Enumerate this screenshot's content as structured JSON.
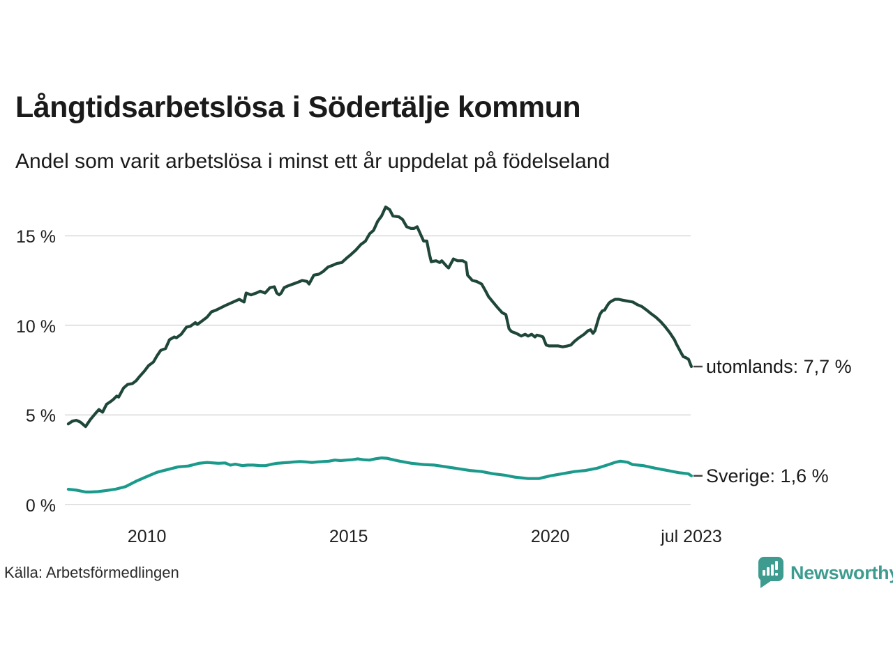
{
  "chart_data": {
    "type": "line",
    "title": "Långtidsarbetslösa i Södertälje kommun",
    "subtitle": "Andel som varit arbetslösa i minst ett år uppdelat på födelseland",
    "unit": "%",
    "grid": "horizontal",
    "legend": "end-of-line-labels",
    "x_axis": {
      "range": [
        2008.0,
        2023.5
      ],
      "ticks": [
        2010,
        2015,
        2020,
        2023.5
      ],
      "tick_labels": [
        "2010",
        "2015",
        "2020",
        "jul 2023"
      ]
    },
    "y_axis": {
      "range": [
        0,
        17.2
      ],
      "ticks": [
        0,
        5,
        10,
        15
      ],
      "tick_labels": [
        "0 %",
        "5 %",
        "10 %",
        "15 %"
      ]
    },
    "series": [
      {
        "name": "utomlands",
        "label": "utomlands: 7,7 %",
        "last_value": 7.7,
        "color": "#1f4739",
        "points": [
          [
            2008.05,
            4.5
          ],
          [
            2008.15,
            4.65
          ],
          [
            2008.25,
            4.7
          ],
          [
            2008.35,
            4.6
          ],
          [
            2008.48,
            4.35
          ],
          [
            2008.6,
            4.75
          ],
          [
            2008.73,
            5.1
          ],
          [
            2008.81,
            5.3
          ],
          [
            2008.9,
            5.15
          ],
          [
            2009.0,
            5.6
          ],
          [
            2009.07,
            5.7
          ],
          [
            2009.16,
            5.85
          ],
          [
            2009.25,
            6.05
          ],
          [
            2009.3,
            6.0
          ],
          [
            2009.42,
            6.5
          ],
          [
            2009.52,
            6.7
          ],
          [
            2009.64,
            6.75
          ],
          [
            2009.73,
            6.9
          ],
          [
            2009.82,
            7.15
          ],
          [
            2009.94,
            7.45
          ],
          [
            2010.04,
            7.75
          ],
          [
            2010.16,
            7.95
          ],
          [
            2010.25,
            8.3
          ],
          [
            2010.34,
            8.6
          ],
          [
            2010.46,
            8.7
          ],
          [
            2010.56,
            9.2
          ],
          [
            2010.68,
            9.35
          ],
          [
            2010.73,
            9.3
          ],
          [
            2010.85,
            9.5
          ],
          [
            2010.98,
            9.9
          ],
          [
            2011.08,
            9.95
          ],
          [
            2011.2,
            10.15
          ],
          [
            2011.25,
            10.05
          ],
          [
            2011.37,
            10.25
          ],
          [
            2011.49,
            10.45
          ],
          [
            2011.6,
            10.75
          ],
          [
            2011.72,
            10.85
          ],
          [
            2011.94,
            11.1
          ],
          [
            2012.19,
            11.35
          ],
          [
            2012.29,
            11.45
          ],
          [
            2012.41,
            11.3
          ],
          [
            2012.46,
            11.8
          ],
          [
            2012.58,
            11.7
          ],
          [
            2012.71,
            11.8
          ],
          [
            2012.81,
            11.9
          ],
          [
            2012.93,
            11.8
          ],
          [
            2013.05,
            12.1
          ],
          [
            2013.16,
            12.15
          ],
          [
            2013.22,
            11.8
          ],
          [
            2013.28,
            11.7
          ],
          [
            2013.33,
            11.8
          ],
          [
            2013.4,
            12.1
          ],
          [
            2013.5,
            12.2
          ],
          [
            2013.62,
            12.3
          ],
          [
            2013.74,
            12.4
          ],
          [
            2013.85,
            12.5
          ],
          [
            2013.97,
            12.45
          ],
          [
            2014.02,
            12.3
          ],
          [
            2014.14,
            12.8
          ],
          [
            2014.26,
            12.85
          ],
          [
            2014.37,
            13.0
          ],
          [
            2014.49,
            13.25
          ],
          [
            2014.61,
            13.35
          ],
          [
            2014.71,
            13.45
          ],
          [
            2014.83,
            13.5
          ],
          [
            2014.95,
            13.75
          ],
          [
            2015.06,
            13.95
          ],
          [
            2015.18,
            14.2
          ],
          [
            2015.3,
            14.5
          ],
          [
            2015.42,
            14.7
          ],
          [
            2015.52,
            15.1
          ],
          [
            2015.62,
            15.3
          ],
          [
            2015.72,
            15.8
          ],
          [
            2015.82,
            16.1
          ],
          [
            2015.92,
            16.6
          ],
          [
            2016.02,
            16.45
          ],
          [
            2016.1,
            16.1
          ],
          [
            2016.25,
            16.05
          ],
          [
            2016.34,
            15.9
          ],
          [
            2016.44,
            15.5
          ],
          [
            2016.55,
            15.4
          ],
          [
            2016.62,
            15.4
          ],
          [
            2016.7,
            15.5
          ],
          [
            2016.8,
            15.0
          ],
          [
            2016.86,
            14.7
          ],
          [
            2016.94,
            14.7
          ],
          [
            2017.0,
            14.0
          ],
          [
            2017.05,
            13.55
          ],
          [
            2017.17,
            13.6
          ],
          [
            2017.26,
            13.5
          ],
          [
            2017.31,
            13.6
          ],
          [
            2017.43,
            13.3
          ],
          [
            2017.48,
            13.2
          ],
          [
            2017.6,
            13.7
          ],
          [
            2017.7,
            13.6
          ],
          [
            2017.83,
            13.6
          ],
          [
            2017.91,
            13.5
          ],
          [
            2017.95,
            12.8
          ],
          [
            2018.07,
            12.5
          ],
          [
            2018.17,
            12.45
          ],
          [
            2018.3,
            12.3
          ],
          [
            2018.4,
            11.9
          ],
          [
            2018.47,
            11.6
          ],
          [
            2018.58,
            11.3
          ],
          [
            2018.69,
            11.0
          ],
          [
            2018.81,
            10.7
          ],
          [
            2018.9,
            10.6
          ],
          [
            2018.98,
            9.8
          ],
          [
            2019.04,
            9.65
          ],
          [
            2019.16,
            9.55
          ],
          [
            2019.28,
            9.4
          ],
          [
            2019.38,
            9.5
          ],
          [
            2019.45,
            9.4
          ],
          [
            2019.54,
            9.5
          ],
          [
            2019.62,
            9.35
          ],
          [
            2019.67,
            9.45
          ],
          [
            2019.76,
            9.4
          ],
          [
            2019.82,
            9.35
          ],
          [
            2019.9,
            8.9
          ],
          [
            2019.97,
            8.85
          ],
          [
            2020.08,
            8.85
          ],
          [
            2020.2,
            8.85
          ],
          [
            2020.31,
            8.8
          ],
          [
            2020.43,
            8.85
          ],
          [
            2020.51,
            8.9
          ],
          [
            2020.6,
            9.1
          ],
          [
            2020.71,
            9.3
          ],
          [
            2020.84,
            9.5
          ],
          [
            2020.89,
            9.6
          ],
          [
            2020.94,
            9.7
          ],
          [
            2021.0,
            9.75
          ],
          [
            2021.06,
            9.55
          ],
          [
            2021.11,
            9.7
          ],
          [
            2021.18,
            10.25
          ],
          [
            2021.23,
            10.6
          ],
          [
            2021.29,
            10.8
          ],
          [
            2021.35,
            10.85
          ],
          [
            2021.4,
            11.05
          ],
          [
            2021.46,
            11.25
          ],
          [
            2021.52,
            11.35
          ],
          [
            2021.61,
            11.45
          ],
          [
            2021.7,
            11.45
          ],
          [
            2021.8,
            11.4
          ],
          [
            2021.92,
            11.35
          ],
          [
            2022.05,
            11.3
          ],
          [
            2022.16,
            11.15
          ],
          [
            2022.27,
            11.05
          ],
          [
            2022.39,
            10.85
          ],
          [
            2022.5,
            10.65
          ],
          [
            2022.62,
            10.45
          ],
          [
            2022.74,
            10.2
          ],
          [
            2022.84,
            9.95
          ],
          [
            2022.96,
            9.6
          ],
          [
            2023.08,
            9.2
          ],
          [
            2023.13,
            8.95
          ],
          [
            2023.19,
            8.7
          ],
          [
            2023.25,
            8.45
          ],
          [
            2023.3,
            8.25
          ],
          [
            2023.36,
            8.2
          ],
          [
            2023.43,
            8.1
          ],
          [
            2023.5,
            7.7
          ]
        ]
      },
      {
        "name": "Sverige",
        "label": "Sverige: 1,6 %",
        "last_value": 1.6,
        "color": "#1b9a8c",
        "points": [
          [
            2008.05,
            0.85
          ],
          [
            2008.26,
            0.8
          ],
          [
            2008.48,
            0.7
          ],
          [
            2008.6,
            0.7
          ],
          [
            2008.78,
            0.72
          ],
          [
            2008.99,
            0.78
          ],
          [
            2009.21,
            0.85
          ],
          [
            2009.47,
            1.0
          ],
          [
            2009.73,
            1.3
          ],
          [
            2009.99,
            1.55
          ],
          [
            2010.25,
            1.8
          ],
          [
            2010.51,
            1.95
          ],
          [
            2010.77,
            2.1
          ],
          [
            2011.03,
            2.15
          ],
          [
            2011.29,
            2.3
          ],
          [
            2011.49,
            2.35
          ],
          [
            2011.77,
            2.3
          ],
          [
            2011.94,
            2.32
          ],
          [
            2012.07,
            2.2
          ],
          [
            2012.19,
            2.25
          ],
          [
            2012.37,
            2.17
          ],
          [
            2012.5,
            2.2
          ],
          [
            2012.64,
            2.2
          ],
          [
            2012.8,
            2.17
          ],
          [
            2012.94,
            2.17
          ],
          [
            2013.1,
            2.25
          ],
          [
            2013.23,
            2.3
          ],
          [
            2013.38,
            2.33
          ],
          [
            2013.51,
            2.35
          ],
          [
            2013.65,
            2.38
          ],
          [
            2013.8,
            2.4
          ],
          [
            2013.95,
            2.38
          ],
          [
            2014.09,
            2.35
          ],
          [
            2014.23,
            2.38
          ],
          [
            2014.37,
            2.4
          ],
          [
            2014.51,
            2.42
          ],
          [
            2014.66,
            2.48
          ],
          [
            2014.8,
            2.45
          ],
          [
            2014.95,
            2.48
          ],
          [
            2015.09,
            2.5
          ],
          [
            2015.23,
            2.55
          ],
          [
            2015.37,
            2.5
          ],
          [
            2015.52,
            2.48
          ],
          [
            2015.66,
            2.55
          ],
          [
            2015.82,
            2.6
          ],
          [
            2015.95,
            2.58
          ],
          [
            2016.1,
            2.5
          ],
          [
            2016.27,
            2.42
          ],
          [
            2016.56,
            2.3
          ],
          [
            2016.86,
            2.23
          ],
          [
            2017.13,
            2.2
          ],
          [
            2017.43,
            2.1
          ],
          [
            2017.72,
            2.0
          ],
          [
            2018.0,
            1.9
          ],
          [
            2018.3,
            1.84
          ],
          [
            2018.58,
            1.72
          ],
          [
            2018.86,
            1.64
          ],
          [
            2019.15,
            1.52
          ],
          [
            2019.45,
            1.45
          ],
          [
            2019.72,
            1.45
          ],
          [
            2020.0,
            1.6
          ],
          [
            2020.3,
            1.72
          ],
          [
            2020.6,
            1.84
          ],
          [
            2020.88,
            1.9
          ],
          [
            2021.17,
            2.03
          ],
          [
            2021.45,
            2.23
          ],
          [
            2021.62,
            2.36
          ],
          [
            2021.74,
            2.42
          ],
          [
            2021.92,
            2.36
          ],
          [
            2022.04,
            2.23
          ],
          [
            2022.31,
            2.17
          ],
          [
            2022.6,
            2.03
          ],
          [
            2022.9,
            1.9
          ],
          [
            2023.18,
            1.78
          ],
          [
            2023.42,
            1.72
          ],
          [
            2023.5,
            1.6
          ]
        ]
      }
    ]
  },
  "footer": {
    "source": "Källa: Arbetsförmedlingen",
    "brand": "Newsworthy"
  },
  "colors": {
    "background": "#ffffff",
    "grid": "#e2e2e2",
    "text": "#1a1a1a",
    "axis_text": "#1f1f1f",
    "tick_dash": "#444444",
    "brand": "#3d9c8f"
  }
}
